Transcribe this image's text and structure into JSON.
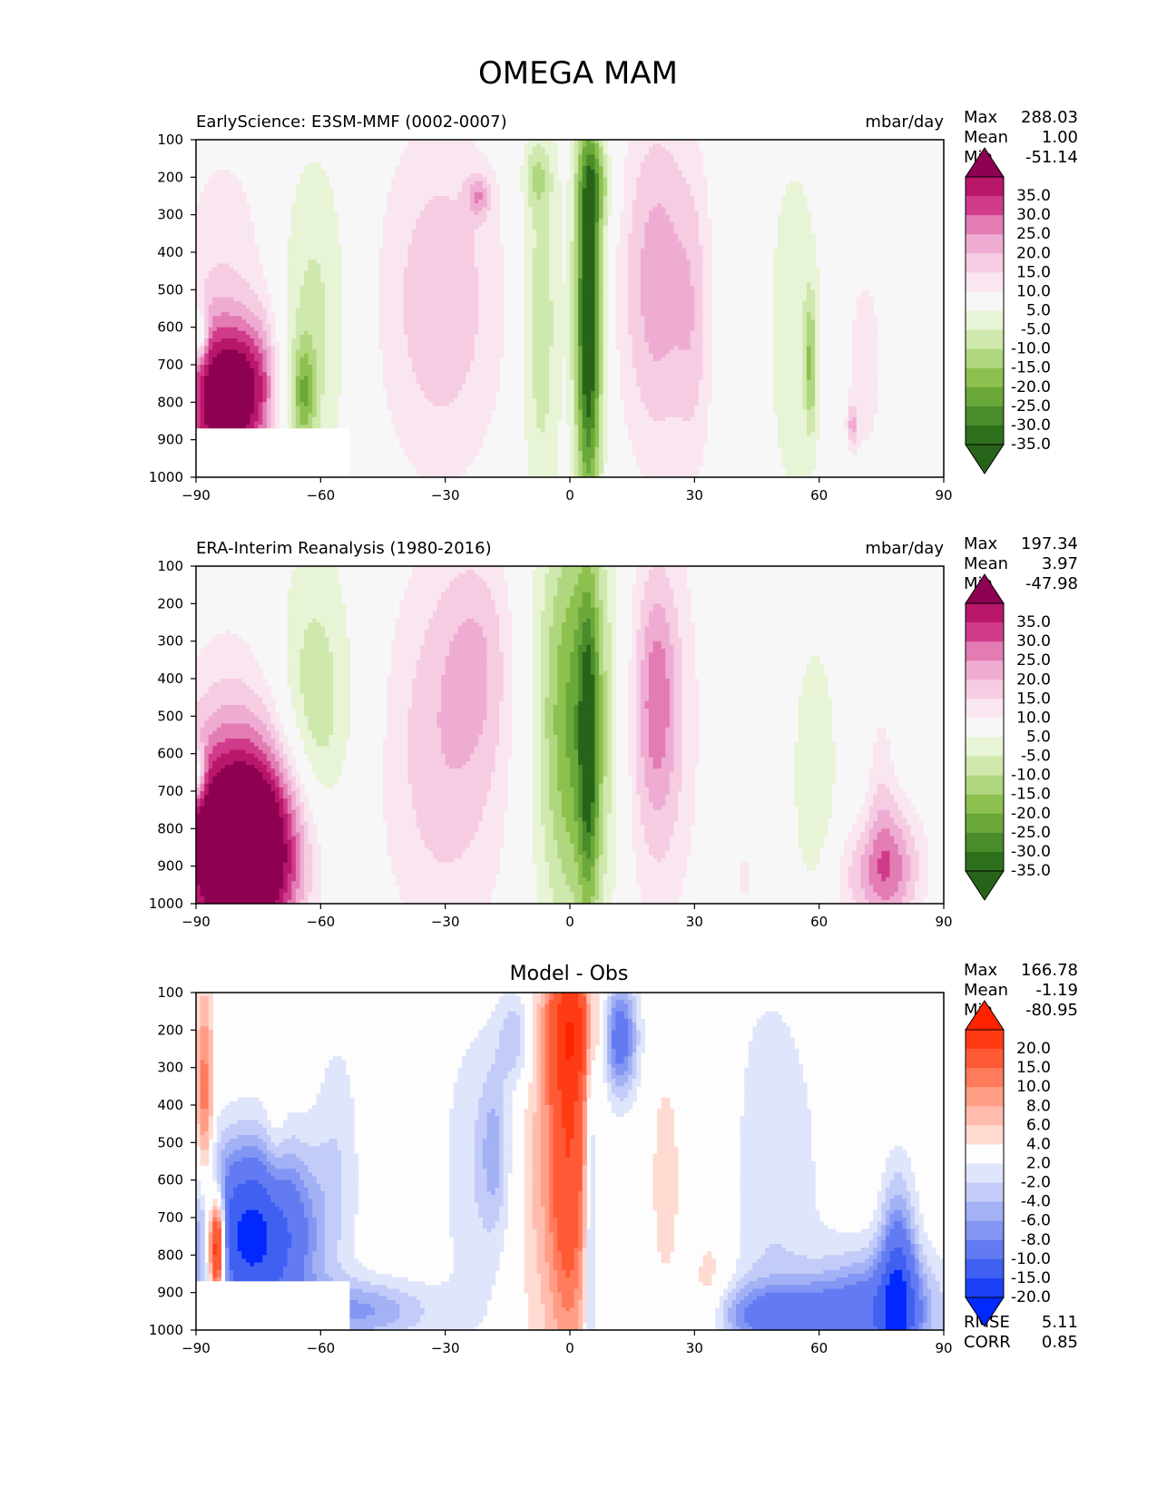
{
  "figure_title": "OMEGA MAM",
  "chart_data": [
    {
      "type": "heatmap",
      "title_left": "EarlyScience: E3SM-MMF (0002-0007)",
      "units": "mbar/day",
      "xlim": [
        -90,
        90
      ],
      "ylim": [
        1000,
        100
      ],
      "x_ticks": [
        "−90",
        "−60",
        "−30",
        "0",
        "30",
        "60",
        "90"
      ],
      "y_ticks": [
        "100",
        "200",
        "300",
        "400",
        "500",
        "600",
        "700",
        "800",
        "900",
        "1000"
      ],
      "stats": [
        {
          "label": "Max",
          "value": "288.03"
        },
        {
          "label": "Mean",
          "value": "1.00"
        },
        {
          "label": "Min",
          "value": "-51.14"
        }
      ],
      "colorbar_labels": [
        "35.0",
        "30.0",
        "25.0",
        "20.0",
        "15.0",
        "10.0",
        "5.0",
        "-5.0",
        "-10.0",
        "-15.0",
        "-20.0",
        "-25.0",
        "-30.0",
        "-35.0"
      ],
      "colorbar_colors": [
        "#8e0152",
        "#b8176a",
        "#d13b8b",
        "#e37cb3",
        "#efacd2",
        "#f6cce3",
        "#fae6f0",
        "#f7f7f7",
        "#e8f4d6",
        "#cfe8ad",
        "#b0d77f",
        "#8dc14f",
        "#6aa83a",
        "#4a8b2a",
        "#2e6f1c",
        "#276419"
      ],
      "fields": [
        {
          "x": -85,
          "y": 800,
          "rx": 5,
          "ry": 150,
          "v": 40
        },
        {
          "x": -79,
          "y": 780,
          "rx": 3,
          "ry": 130,
          "v": 18
        },
        {
          "x": -74,
          "y": 760,
          "rx": 3,
          "ry": 140,
          "v": 20
        },
        {
          "x": -83,
          "y": 450,
          "rx": 9,
          "ry": 280,
          "v": 8
        },
        {
          "x": -89,
          "y": 620,
          "rx": 1.2,
          "ry": 50,
          "v": -20
        },
        {
          "x": -62,
          "y": 570,
          "rx": 6.5,
          "ry": 330,
          "v": -12
        },
        {
          "x": -64,
          "y": 780,
          "rx": 2,
          "ry": 100,
          "v": -18
        },
        {
          "x": -31,
          "y": 530,
          "rx": 11,
          "ry": 340,
          "v": 14
        },
        {
          "x": -22,
          "y": 250,
          "rx": 2,
          "ry": 40,
          "v": 14
        },
        {
          "x": -7,
          "y": 580,
          "rx": 3.5,
          "ry": 420,
          "v": -14
        },
        {
          "x": -8,
          "y": 200,
          "rx": 2.5,
          "ry": 60,
          "v": -9
        },
        {
          "x": 4.5,
          "y": 560,
          "rx": 2.3,
          "ry": 400,
          "v": -45
        },
        {
          "x": 7,
          "y": 220,
          "rx": 3,
          "ry": 80,
          "v": -12
        },
        {
          "x": 21,
          "y": 480,
          "rx": 6.5,
          "ry": 340,
          "v": 18
        },
        {
          "x": 30,
          "y": 600,
          "rx": 3,
          "ry": 300,
          "v": 8
        },
        {
          "x": 54,
          "y": 610,
          "rx": 5,
          "ry": 370,
          "v": -9
        },
        {
          "x": 58,
          "y": 700,
          "rx": 1,
          "ry": 130,
          "v": -16
        },
        {
          "x": 71,
          "y": 700,
          "rx": 4,
          "ry": 250,
          "v": 7
        },
        {
          "x": 68,
          "y": 860,
          "rx": 0.8,
          "ry": 40,
          "v": 14
        }
      ],
      "mask": [
        {
          "x0": -90,
          "x1": -53,
          "p0": 870,
          "p1": 1000
        }
      ]
    },
    {
      "type": "heatmap",
      "title_left": "ERA-Interim Reanalysis (1980-2016)",
      "units": "mbar/day",
      "xlim": [
        -90,
        90
      ],
      "ylim": [
        1000,
        100
      ],
      "x_ticks": [
        "−90",
        "−60",
        "−30",
        "0",
        "30",
        "60",
        "90"
      ],
      "y_ticks": [
        "100",
        "200",
        "300",
        "400",
        "500",
        "600",
        "700",
        "800",
        "900",
        "1000"
      ],
      "stats": [
        {
          "label": "Max",
          "value": "197.34"
        },
        {
          "label": "Mean",
          "value": "3.97"
        },
        {
          "label": "Min",
          "value": "-47.98"
        }
      ],
      "colorbar_labels": [
        "35.0",
        "30.0",
        "25.0",
        "20.0",
        "15.0",
        "10.0",
        "5.0",
        "-5.0",
        "-10.0",
        "-15.0",
        "-20.0",
        "-25.0",
        "-30.0",
        "-35.0"
      ],
      "colorbar_colors": [
        "#8e0152",
        "#b8176a",
        "#d13b8b",
        "#e37cb3",
        "#efacd2",
        "#f6cce3",
        "#fae6f0",
        "#f7f7f7",
        "#e8f4d6",
        "#cfe8ad",
        "#b0d77f",
        "#8dc14f",
        "#6aa83a",
        "#4a8b2a",
        "#2e6f1c",
        "#276419"
      ],
      "fields": [
        {
          "x": -78,
          "y": 860,
          "rx": 12,
          "ry": 200,
          "v": 60
        },
        {
          "x": -80,
          "y": 520,
          "rx": 10,
          "ry": 260,
          "v": 8
        },
        {
          "x": -89.5,
          "y": 650,
          "rx": 1.2,
          "ry": 50,
          "v": -22
        },
        {
          "x": -62,
          "y": 640,
          "rx": 6,
          "ry": 330,
          "v": -14
        },
        {
          "x": -61,
          "y": 600,
          "rx": 11,
          "ry": 480,
          "v": -6
        },
        {
          "x": -30,
          "y": 580,
          "rx": 12,
          "ry": 380,
          "v": 14
        },
        {
          "x": -22,
          "y": 330,
          "rx": 6,
          "ry": 200,
          "v": 8
        },
        {
          "x": 2,
          "y": 510,
          "rx": 7.5,
          "ry": 420,
          "v": -28
        },
        {
          "x": 4.5,
          "y": 600,
          "rx": 1.6,
          "ry": 300,
          "v": -20
        },
        {
          "x": 20,
          "y": 520,
          "rx": 7,
          "ry": 380,
          "v": 16
        },
        {
          "x": 21,
          "y": 440,
          "rx": 3,
          "ry": 200,
          "v": 10
        },
        {
          "x": 59,
          "y": 660,
          "rx": 4,
          "ry": 270,
          "v": -10
        },
        {
          "x": 78,
          "y": 900,
          "rx": 5,
          "ry": 120,
          "v": 18
        },
        {
          "x": 70,
          "y": 930,
          "rx": 6,
          "ry": 100,
          "v": 10
        },
        {
          "x": 75,
          "y": 700,
          "rx": 2.5,
          "ry": 200,
          "v": 7
        },
        {
          "x": 42,
          "y": 930,
          "rx": 1.5,
          "ry": 80,
          "v": 6
        }
      ],
      "mask": []
    },
    {
      "type": "heatmap",
      "title_center": "Model - Obs",
      "xlim": [
        -90,
        90
      ],
      "ylim": [
        1000,
        100
      ],
      "x_ticks": [
        "−90",
        "−60",
        "−30",
        "0",
        "30",
        "60",
        "90"
      ],
      "y_ticks": [
        "100",
        "200",
        "300",
        "400",
        "500",
        "600",
        "700",
        "800",
        "900",
        "1000"
      ],
      "stats": [
        {
          "label": "Max",
          "value": "166.78"
        },
        {
          "label": "Mean",
          "value": "-1.19"
        },
        {
          "label": "Min",
          "value": "-80.95"
        }
      ],
      "error_stats": [
        {
          "label": "RMSE",
          "value": "5.11"
        },
        {
          "label": "CORR",
          "value": "0.85"
        }
      ],
      "colorbar_labels": [
        "20.0",
        "15.0",
        "10.0",
        "8.0",
        "6.0",
        "4.0",
        "2.0",
        "-2.0",
        "-4.0",
        "-6.0",
        "-8.0",
        "-10.0",
        "-15.0",
        "-20.0"
      ],
      "colorbar_colors": [
        "#ff2200",
        "#ff3b14",
        "#ff5a36",
        "#ff7b5c",
        "#ff9d85",
        "#ffbcae",
        "#ffdbd2",
        "#fdfdfd",
        "#dfe5fb",
        "#c3ccf8",
        "#a3b1f5",
        "#8396f3",
        "#637bf2",
        "#4060f2",
        "#1c40f5",
        "#0028ff"
      ],
      "fields": [
        {
          "x": 0,
          "y": 440,
          "rx": 3.5,
          "ry": 440,
          "v": 14
        },
        {
          "x": 0.5,
          "y": 200,
          "rx": 5,
          "ry": 110,
          "v": 8
        },
        {
          "x": -7,
          "y": 600,
          "rx": 4.5,
          "ry": 380,
          "v": 4
        },
        {
          "x": 12,
          "y": 220,
          "rx": 3,
          "ry": 110,
          "v": -13
        },
        {
          "x": -13,
          "y": 220,
          "rx": 3,
          "ry": 90,
          "v": -6
        },
        {
          "x": 5,
          "y": 700,
          "rx": 1,
          "ry": 450,
          "v": -8
        },
        {
          "x": -23,
          "y": 580,
          "rx": 6,
          "ry": 320,
          "v": -3.5
        },
        {
          "x": -18,
          "y": 520,
          "rx": 2.5,
          "ry": 150,
          "v": -5
        },
        {
          "x": 48,
          "y": 620,
          "rx": 9,
          "ry": 400,
          "v": -4
        },
        {
          "x": 74,
          "y": 950,
          "rx": 11,
          "ry": 110,
          "v": -12
        },
        {
          "x": 79,
          "y": 900,
          "rx": 3,
          "ry": 200,
          "v": -14
        },
        {
          "x": 50,
          "y": 960,
          "rx": 12,
          "ry": 60,
          "v": -10
        },
        {
          "x": -76,
          "y": 750,
          "rx": 10,
          "ry": 170,
          "v": -22
        },
        {
          "x": -88,
          "y": 400,
          "rx": 1.5,
          "ry": 220,
          "v": 10
        },
        {
          "x": -85,
          "y": 780,
          "rx": 1.5,
          "ry": 100,
          "v": 30
        },
        {
          "x": -56,
          "y": 470,
          "rx": 4,
          "ry": 220,
          "v": -3
        },
        {
          "x": -50,
          "y": 950,
          "rx": 12,
          "ry": 60,
          "v": -8
        },
        {
          "x": 35,
          "y": 560,
          "rx": 4,
          "ry": 350,
          "v": 3
        },
        {
          "x": 23,
          "y": 600,
          "rx": 3,
          "ry": 260,
          "v": 3
        },
        {
          "x": 33,
          "y": 920,
          "rx": 3,
          "ry": 80,
          "v": 3
        },
        {
          "x": -71,
          "y": 540,
          "rx": 2,
          "ry": 160,
          "v": 3
        }
      ],
      "mask": [
        {
          "x0": -90,
          "x1": -53,
          "p0": 870,
          "p1": 1000
        }
      ]
    }
  ]
}
